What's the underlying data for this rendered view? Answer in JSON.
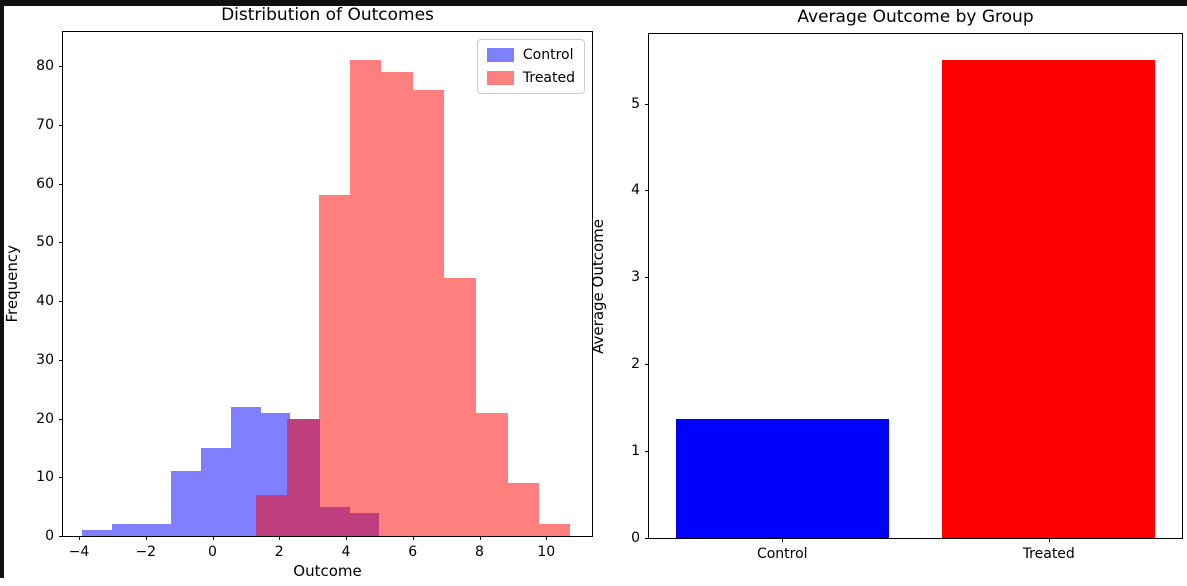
{
  "figure": {
    "background": "#ffffff",
    "screenshot_border_color": "#111111"
  },
  "chart_data": [
    {
      "type": "histogram",
      "title": "Distribution of Outcomes",
      "xlabel": "Outcome",
      "ylabel": "Frequency",
      "xlim": [
        -4.48,
        11.37
      ],
      "ylim": [
        0,
        85.8
      ],
      "xticks": [
        -4,
        -2,
        0,
        2,
        4,
        6,
        8,
        10
      ],
      "xtick_labels": [
        "−4",
        "−2",
        "0",
        "2",
        "4",
        "6",
        "8",
        "10"
      ],
      "yticks": [
        0,
        10,
        20,
        30,
        40,
        50,
        60,
        70,
        80
      ],
      "grid": false,
      "legend_position": "upper-right",
      "series": [
        {
          "name": "Control",
          "color": "rgba(0,0,255,0.5)",
          "bin_edges": [
            -3.9,
            -3.01,
            -2.12,
            -1.23,
            -0.34,
            0.55,
            1.44,
            2.33,
            3.22,
            4.11,
            5.0
          ],
          "counts": [
            1,
            2,
            2,
            11,
            15,
            22,
            21,
            20,
            5,
            4
          ]
        },
        {
          "name": "Treated",
          "color": "rgba(255,0,0,0.5)",
          "bin_edges": [
            1.29,
            2.23,
            3.18,
            4.12,
            5.06,
            6.01,
            6.95,
            7.89,
            8.84,
            9.78,
            10.72
          ],
          "counts": [
            7,
            20,
            58,
            81,
            79,
            76,
            44,
            21,
            9,
            2
          ]
        }
      ]
    },
    {
      "type": "bar",
      "title": "Average Outcome by Group",
      "xlabel": "",
      "ylabel": "Average Outcome",
      "categories": [
        "Control",
        "Treated"
      ],
      "values": [
        1.37,
        5.5
      ],
      "colors": [
        "#0000ff",
        "#ff0000"
      ],
      "ylim": [
        0,
        5.8
      ],
      "yticks": [
        0,
        1,
        2,
        3,
        4,
        5
      ],
      "ytick_labels": [
        "0",
        "1",
        "2",
        "3",
        "4",
        "5"
      ],
      "bar_center_fractions": [
        0.25,
        0.75
      ],
      "bar_width_fraction": 0.4,
      "grid": false
    }
  ]
}
